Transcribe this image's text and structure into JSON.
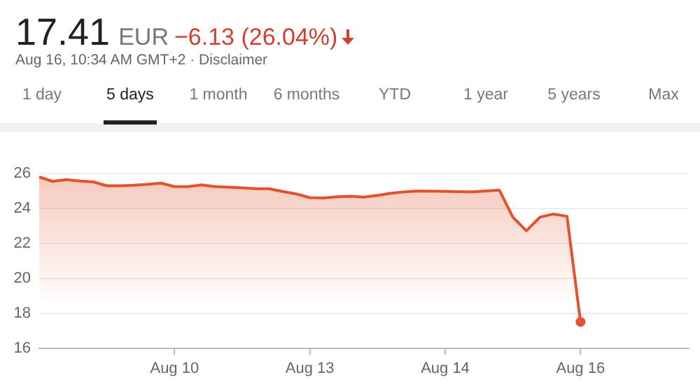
{
  "chart_data": {
    "type": "area",
    "title": "17.41",
    "annotations": [
      "EUR",
      "−6.13 (26.04%)",
      "Aug 16, 10:34 AM GMT+2 · Disclaimer",
      "1 day",
      "5 days",
      "1 month",
      "6 months",
      "YTD",
      "1 year",
      "5 years",
      "Max"
    ],
    "categories": [
      null,
      null,
      null,
      null,
      null,
      null,
      null,
      null,
      null,
      null,
      "Aug 10",
      null,
      null,
      null,
      null,
      null,
      null,
      null,
      null,
      null,
      "Aug 13",
      null,
      null,
      null,
      null,
      null,
      null,
      null,
      null,
      null,
      "Aug 14",
      null,
      null,
      null,
      null,
      null,
      null,
      null,
      null,
      null,
      "Aug 16",
      null,
      null,
      null,
      null,
      null,
      null,
      null,
      null
    ],
    "series": [
      {
        "color": "#e2532d",
        "values": [
          25.8,
          25.55,
          25.65,
          25.57,
          25.52,
          25.3,
          25.3,
          25.33,
          25.38,
          25.45,
          25.25,
          25.25,
          25.35,
          25.25,
          25.22,
          25.18,
          25.13,
          25.13,
          24.97,
          24.83,
          24.62,
          24.6,
          24.67,
          24.7,
          24.65,
          24.75,
          24.87,
          24.95,
          25.0,
          24.99,
          24.98,
          24.96,
          24.95,
          25.0,
          25.05,
          23.5,
          22.72,
          23.5,
          23.68,
          23.55,
          17.5,
          null,
          null,
          null,
          null,
          null,
          null,
          null,
          null
        ]
      }
    ],
    "ylim": [
      16,
      26
    ],
    "yticks": [
      16,
      18,
      20,
      22,
      24,
      26
    ],
    "grid": "y",
    "legend": false
  }
}
